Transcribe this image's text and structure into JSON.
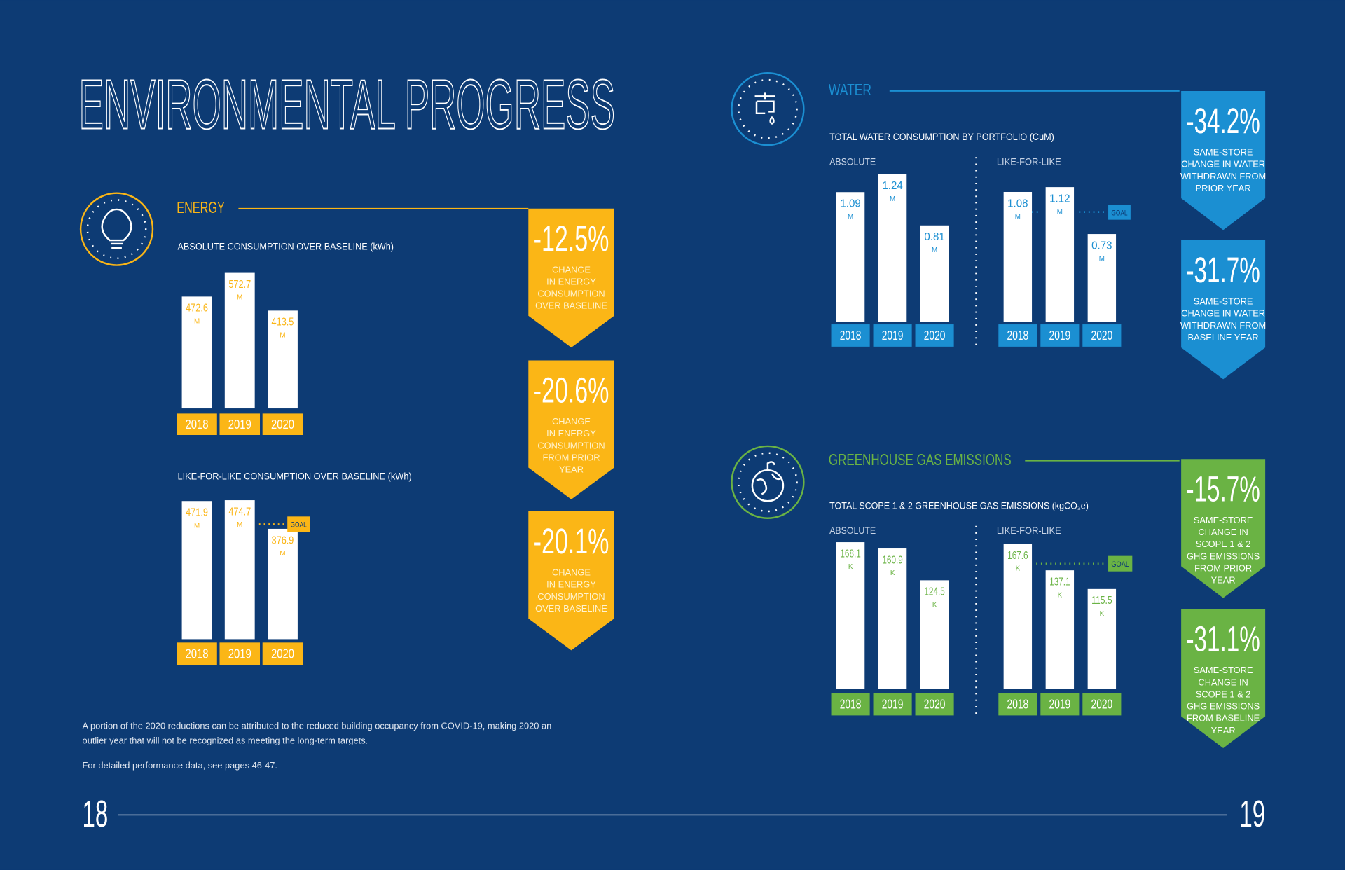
{
  "title": "ENVIRONMENTAL PROGRESS",
  "sections": {
    "energy": {
      "heading": "ENERGY"
    },
    "water": {
      "heading": "WATER",
      "subtitle": "TOTAL WATER CONSUMPTION BY PORTFOLIO (CuM)"
    },
    "ghg": {
      "heading": "GREENHOUSE GAS EMISSIONS",
      "subtitle": "TOTAL SCOPE 1 & 2 GREENHOUSE GAS EMISSIONS (kgCO₂e)"
    }
  },
  "chart_data": [
    {
      "type": "bar",
      "title": "ABSOLUTE CONSUMPTION OVER BASELINE (kWh)",
      "categories": [
        "2018",
        "2019",
        "2020"
      ],
      "values": [
        472.6,
        572.7,
        413.5
      ],
      "unit": "M",
      "color": "#fbb616"
    },
    {
      "type": "bar",
      "title": "LIKE-FOR-LIKE CONSUMPTION OVER BASELINE (kWh)",
      "categories": [
        "2018",
        "2019",
        "2020"
      ],
      "values": [
        471.9,
        474.7,
        376.9
      ],
      "unit": "M",
      "annotation": "GOAL",
      "color": "#fbb616"
    },
    {
      "type": "bar",
      "title": "ABSOLUTE",
      "categories": [
        "2018",
        "2019",
        "2020"
      ],
      "values": [
        1.09,
        1.24,
        0.81
      ],
      "unit": "M",
      "color": "#1b8fd2"
    },
    {
      "type": "bar",
      "title": "LIKE-FOR-LIKE",
      "categories": [
        "2018",
        "2019",
        "2020"
      ],
      "values": [
        1.08,
        1.12,
        0.73
      ],
      "unit": "M",
      "annotation": "GOAL",
      "color": "#1b8fd2"
    },
    {
      "type": "bar",
      "title": "ABSOLUTE",
      "categories": [
        "2018",
        "2019",
        "2020"
      ],
      "values": [
        168.1,
        160.9,
        124.5
      ],
      "unit": "K",
      "color": "#6ab344"
    },
    {
      "type": "bar",
      "title": "LIKE-FOR-LIKE",
      "categories": [
        "2018",
        "2019",
        "2020"
      ],
      "values": [
        167.6,
        137.1,
        115.5
      ],
      "unit": "K",
      "annotation": "GOAL",
      "color": "#6ab344"
    }
  ],
  "callouts": {
    "energy": [
      {
        "value": "-12.5%",
        "lines": [
          "CHANGE",
          "IN ENERGY",
          "CONSUMPTION",
          "OVER BASELINE"
        ]
      },
      {
        "value": "-20.6%",
        "lines": [
          "CHANGE",
          "IN ENERGY",
          "CONSUMPTION",
          "FROM PRIOR",
          "YEAR"
        ]
      },
      {
        "value": "-20.1%",
        "lines": [
          "CHANGE",
          "IN ENERGY",
          "CONSUMPTION",
          "OVER BASELINE"
        ]
      }
    ],
    "water": [
      {
        "value": "-34.2%",
        "lines": [
          "SAME-STORE",
          "CHANGE IN WATER",
          "WITHDRAWN FROM",
          "PRIOR YEAR"
        ]
      },
      {
        "value": "-31.7%",
        "lines": [
          "SAME-STORE",
          "CHANGE IN WATER",
          "WITHDRAWN FROM",
          "BASELINE YEAR"
        ]
      }
    ],
    "ghg": [
      {
        "value": "-15.7%",
        "lines": [
          "SAME-STORE",
          "CHANGE IN",
          "SCOPE 1 & 2",
          "GHG EMISSIONS",
          "FROM PRIOR",
          "YEAR"
        ]
      },
      {
        "value": "-31.1%",
        "lines": [
          "SAME-STORE",
          "CHANGE IN",
          "SCOPE 1 & 2",
          "GHG EMISSIONS",
          "FROM BASELINE",
          "YEAR"
        ]
      }
    ]
  },
  "footnote": [
    "A portion of the 2020 reductions can be attributed to the reduced building occupancy from COVID-19, making 2020 an",
    "outlier year that will not be recognized as meeting the long-term targets."
  ],
  "note": "For detailed performance data, see pages 46-47.",
  "page_left": "18",
  "page_right": "19"
}
